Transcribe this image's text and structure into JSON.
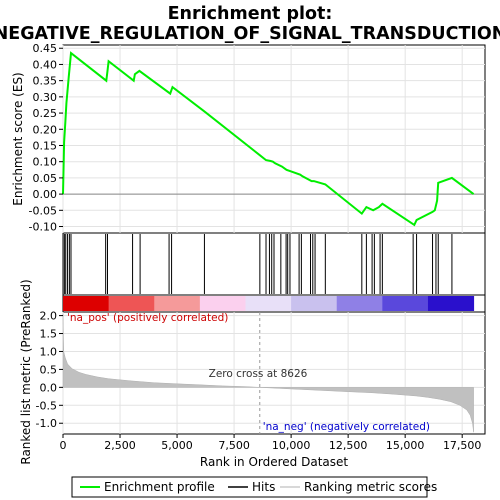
{
  "chart_data": {
    "type": "line",
    "title_line1": "Enrichment plot:",
    "title_line2": "NEGATIVE_REGULATION_OF_SIGNAL_TRANSDUCTION",
    "es_ylabel": "Enrichment score (ES)",
    "metric_ylabel": "Ranked list metric (PreRanked)",
    "xlabel": "Rank in Ordered Dataset",
    "xlim": [
      0,
      18500
    ],
    "x_ticks": [
      0,
      2500,
      5000,
      7500,
      10000,
      12500,
      15000,
      17500
    ],
    "x_tick_labels": [
      "0",
      "2,500",
      "5,000",
      "7,500",
      "10,000",
      "12,500",
      "15,000",
      "17,500"
    ],
    "es_ylim": [
      -0.12,
      0.46
    ],
    "es_ticks": [
      -0.1,
      -0.05,
      0.0,
      0.05,
      0.1,
      0.15,
      0.2,
      0.25,
      0.3,
      0.35,
      0.4,
      0.45
    ],
    "es_tick_labels": [
      "-0.10",
      "-0.05",
      "0.00",
      "0.05",
      "0.10",
      "0.15",
      "0.20",
      "0.25",
      "0.30",
      "0.35",
      "0.40",
      "0.45"
    ],
    "metric_ylim": [
      -1.3,
      2.1
    ],
    "metric_ticks": [
      -1.0,
      -0.5,
      0.0,
      0.5,
      1.0,
      1.5,
      2.0
    ],
    "metric_tick_labels": [
      "-1.0",
      "-0.5",
      "0.0",
      "0.5",
      "1.0",
      "1.5",
      "2.0"
    ],
    "grid": true,
    "legend_position": "bottom",
    "series": [
      {
        "name": "Enrichment profile",
        "color": "#00ee00",
        "x": [
          0,
          50,
          100,
          150,
          250,
          350,
          1900,
          1950,
          2000,
          3100,
          3150,
          3350,
          4700,
          4800,
          6200,
          8626,
          8900,
          9100,
          9200,
          9300,
          9600,
          9800,
          10000,
          10400,
          10500,
          10900,
          11000,
          11500,
          13100,
          13300,
          13600,
          13850,
          14000,
          15400,
          15500,
          16200,
          16300,
          16400,
          16450,
          17050,
          18000
        ],
        "y": [
          0.0,
          0.16,
          0.22,
          0.28,
          0.36,
          0.435,
          0.35,
          0.38,
          0.41,
          0.35,
          0.37,
          0.38,
          0.31,
          0.33,
          0.255,
          0.12,
          0.105,
          0.102,
          0.1,
          0.095,
          0.085,
          0.075,
          0.07,
          0.06,
          0.055,
          0.04,
          0.04,
          0.03,
          -0.06,
          -0.04,
          -0.05,
          -0.04,
          -0.03,
          -0.095,
          -0.08,
          -0.055,
          -0.05,
          -0.02,
          0.035,
          0.05,
          0.0
        ]
      }
    ],
    "hits_x": [
      60,
      120,
      200,
      280,
      350,
      1870,
      1950,
      3050,
      3380,
      4650,
      4760,
      6200,
      8630,
      8900,
      9050,
      9150,
      9250,
      9550,
      9780,
      9850,
      9950,
      10350,
      10450,
      10850,
      10950,
      11050,
      11500,
      13100,
      13300,
      13550,
      13650,
      13900,
      14000,
      15350,
      15500,
      16200,
      16350,
      16450,
      17050
    ],
    "metric_curve": {
      "x": [
        0,
        30,
        100,
        200,
        400,
        700,
        1000,
        1500,
        2000,
        3000,
        4000,
        5000,
        6000,
        7000,
        8000,
        8626,
        9500,
        10500,
        11500,
        12500,
        13500,
        14500,
        15500,
        16000,
        16500,
        17000,
        17400,
        17700,
        17850,
        17950,
        18000
      ],
      "y": [
        2.05,
        1.0,
        0.82,
        0.65,
        0.52,
        0.42,
        0.36,
        0.29,
        0.24,
        0.18,
        0.13,
        0.1,
        0.07,
        0.04,
        0.02,
        0.0,
        -0.03,
        -0.06,
        -0.09,
        -0.12,
        -0.15,
        -0.19,
        -0.24,
        -0.28,
        -0.33,
        -0.4,
        -0.5,
        -0.63,
        -0.78,
        -1.0,
        -1.25
      ]
    },
    "zero_cross_label": "Zero cross at 8626",
    "zero_cross_x": 8626,
    "pos_label": "'na_pos' (positively correlated)",
    "neg_label": "'na_neg' (negatively correlated)",
    "gradient_colors": [
      "#dd0000",
      "#ee5555",
      "#f59a9a",
      "#fbd0ee",
      "#e8e0f8",
      "#c9c1ee",
      "#8f80e6",
      "#5a48dc",
      "#2a10cc"
    ],
    "legend": [
      {
        "label": "Enrichment profile",
        "color": "#00ee00"
      },
      {
        "label": "Hits",
        "color": "#000000"
      },
      {
        "label": "Ranking metric scores",
        "color": "#cccccc"
      }
    ]
  }
}
